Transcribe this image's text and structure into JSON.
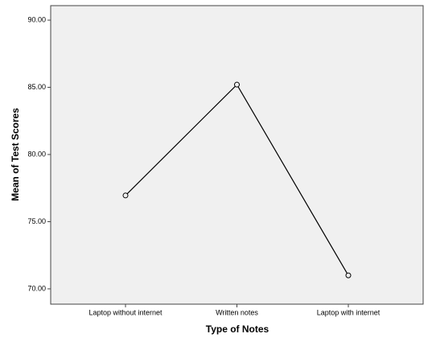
{
  "chart_data": {
    "type": "line",
    "x_label": "Type of Notes",
    "y_label": "Mean of Test Scores",
    "categories": [
      "Laptop without internet",
      "Written notes",
      "Laptop with internet"
    ],
    "values": [
      76.95,
      85.2,
      71.0
    ],
    "color": "#000000",
    "ylim": [
      68.86,
      91.08
    ],
    "yticks": [
      {
        "value": 70,
        "label": "70.00"
      },
      {
        "value": 75,
        "label": "75.00"
      },
      {
        "value": 80,
        "label": "80.00"
      },
      {
        "value": 85,
        "label": "85.00"
      },
      {
        "value": 90,
        "label": "90.00"
      }
    ],
    "grid": false
  }
}
